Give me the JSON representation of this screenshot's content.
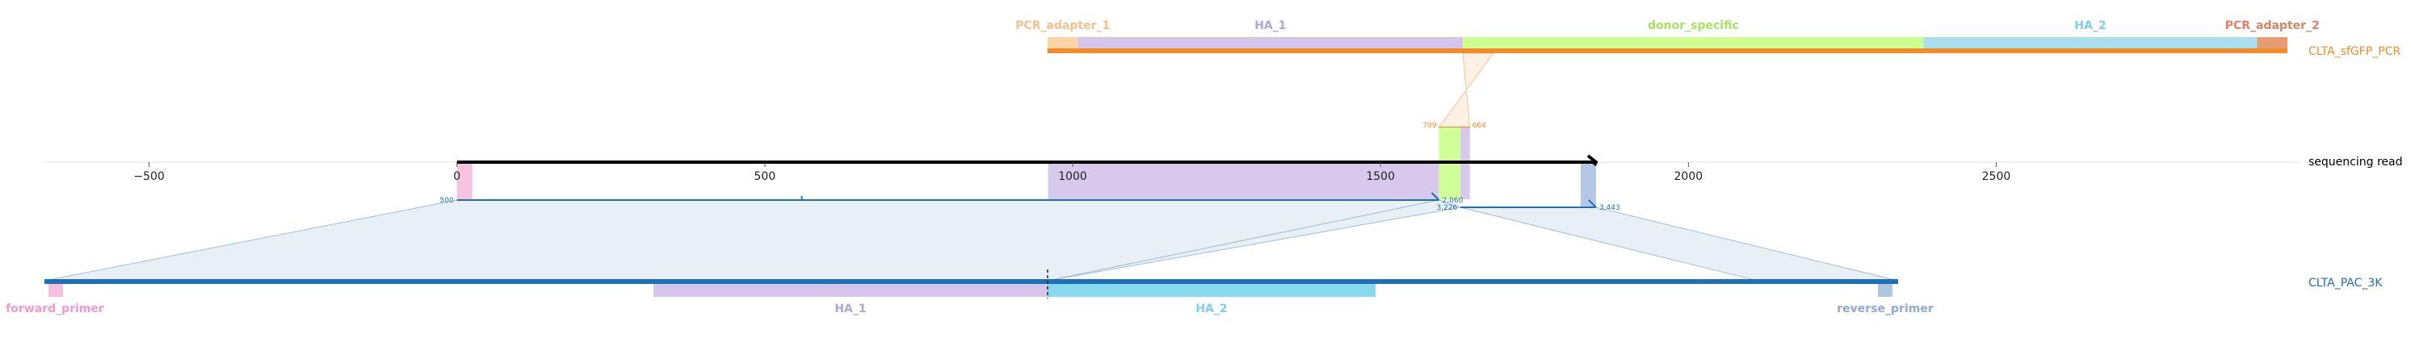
{
  "colors": {
    "pcr_product": "#f28c28",
    "read": "#1f6fb4",
    "reference": "#1f6fb4",
    "pcr_adapter_1": "#fdd4a8",
    "pcr_adapter_2": "#e59b74",
    "ha_1": "#d4c6ea",
    "donor_specific": "#cdff91",
    "ha_2": "#a8deee",
    "forward_primer": "#f8c0dc",
    "reverse_primer": "#b0c4e4",
    "ref_ha_2": "#88d8f0",
    "axis": "#000000",
    "wedge_fill": "#e8f0f6"
  },
  "tracks": {
    "pcr": {
      "label": "CLTA_sfGFP_PCR",
      "features": [
        {
          "name": "PCR_adapter_1",
          "start": 0,
          "end": 10
        },
        {
          "name": "HA_1",
          "start": 10,
          "end": 137
        },
        {
          "name": "donor_specific",
          "start": 137,
          "end": 289
        },
        {
          "name": "HA_2",
          "start": 289,
          "end": 399
        },
        {
          "name": "PCR_adapter_2",
          "start": 399,
          "end": 409
        }
      ],
      "length": 409
    },
    "read": {
      "label": "sequencing read",
      "axis": {
        "min": -670,
        "max": 2990,
        "read_start": 0,
        "read_end": 1850,
        "ticks": [
          -500,
          0,
          500,
          1000,
          1500,
          2000,
          2500
        ]
      },
      "blocks": [
        {
          "name": "forward_primer",
          "start": 0,
          "end": 25
        },
        {
          "name": "HA_1",
          "start": 960,
          "end": 1595
        },
        {
          "name": "donor_specific",
          "start": 1595,
          "end": 1630
        },
        {
          "name": "HA_1",
          "start": 1630,
          "end": 1645
        },
        {
          "name": "reverse_primer",
          "start": 1825,
          "end": 1850
        }
      ],
      "alignments": [
        {
          "start": 0,
          "end": 1595,
          "start_label": "500",
          "end_label": "2,060"
        },
        {
          "start": 1630,
          "end": 1850,
          "start_label": "3,226",
          "end_label": "3,443"
        }
      ],
      "pcr_alignment": {
        "start": 1595,
        "end": 1645,
        "start_label": "709",
        "end_label": "664"
      }
    },
    "reference": {
      "label": "CLTA_PAC_3K",
      "features": [
        {
          "name": "forward_primer"
        },
        {
          "name": "HA_1"
        },
        {
          "name": "HA_2"
        },
        {
          "name": "reverse_primer"
        }
      ]
    }
  }
}
